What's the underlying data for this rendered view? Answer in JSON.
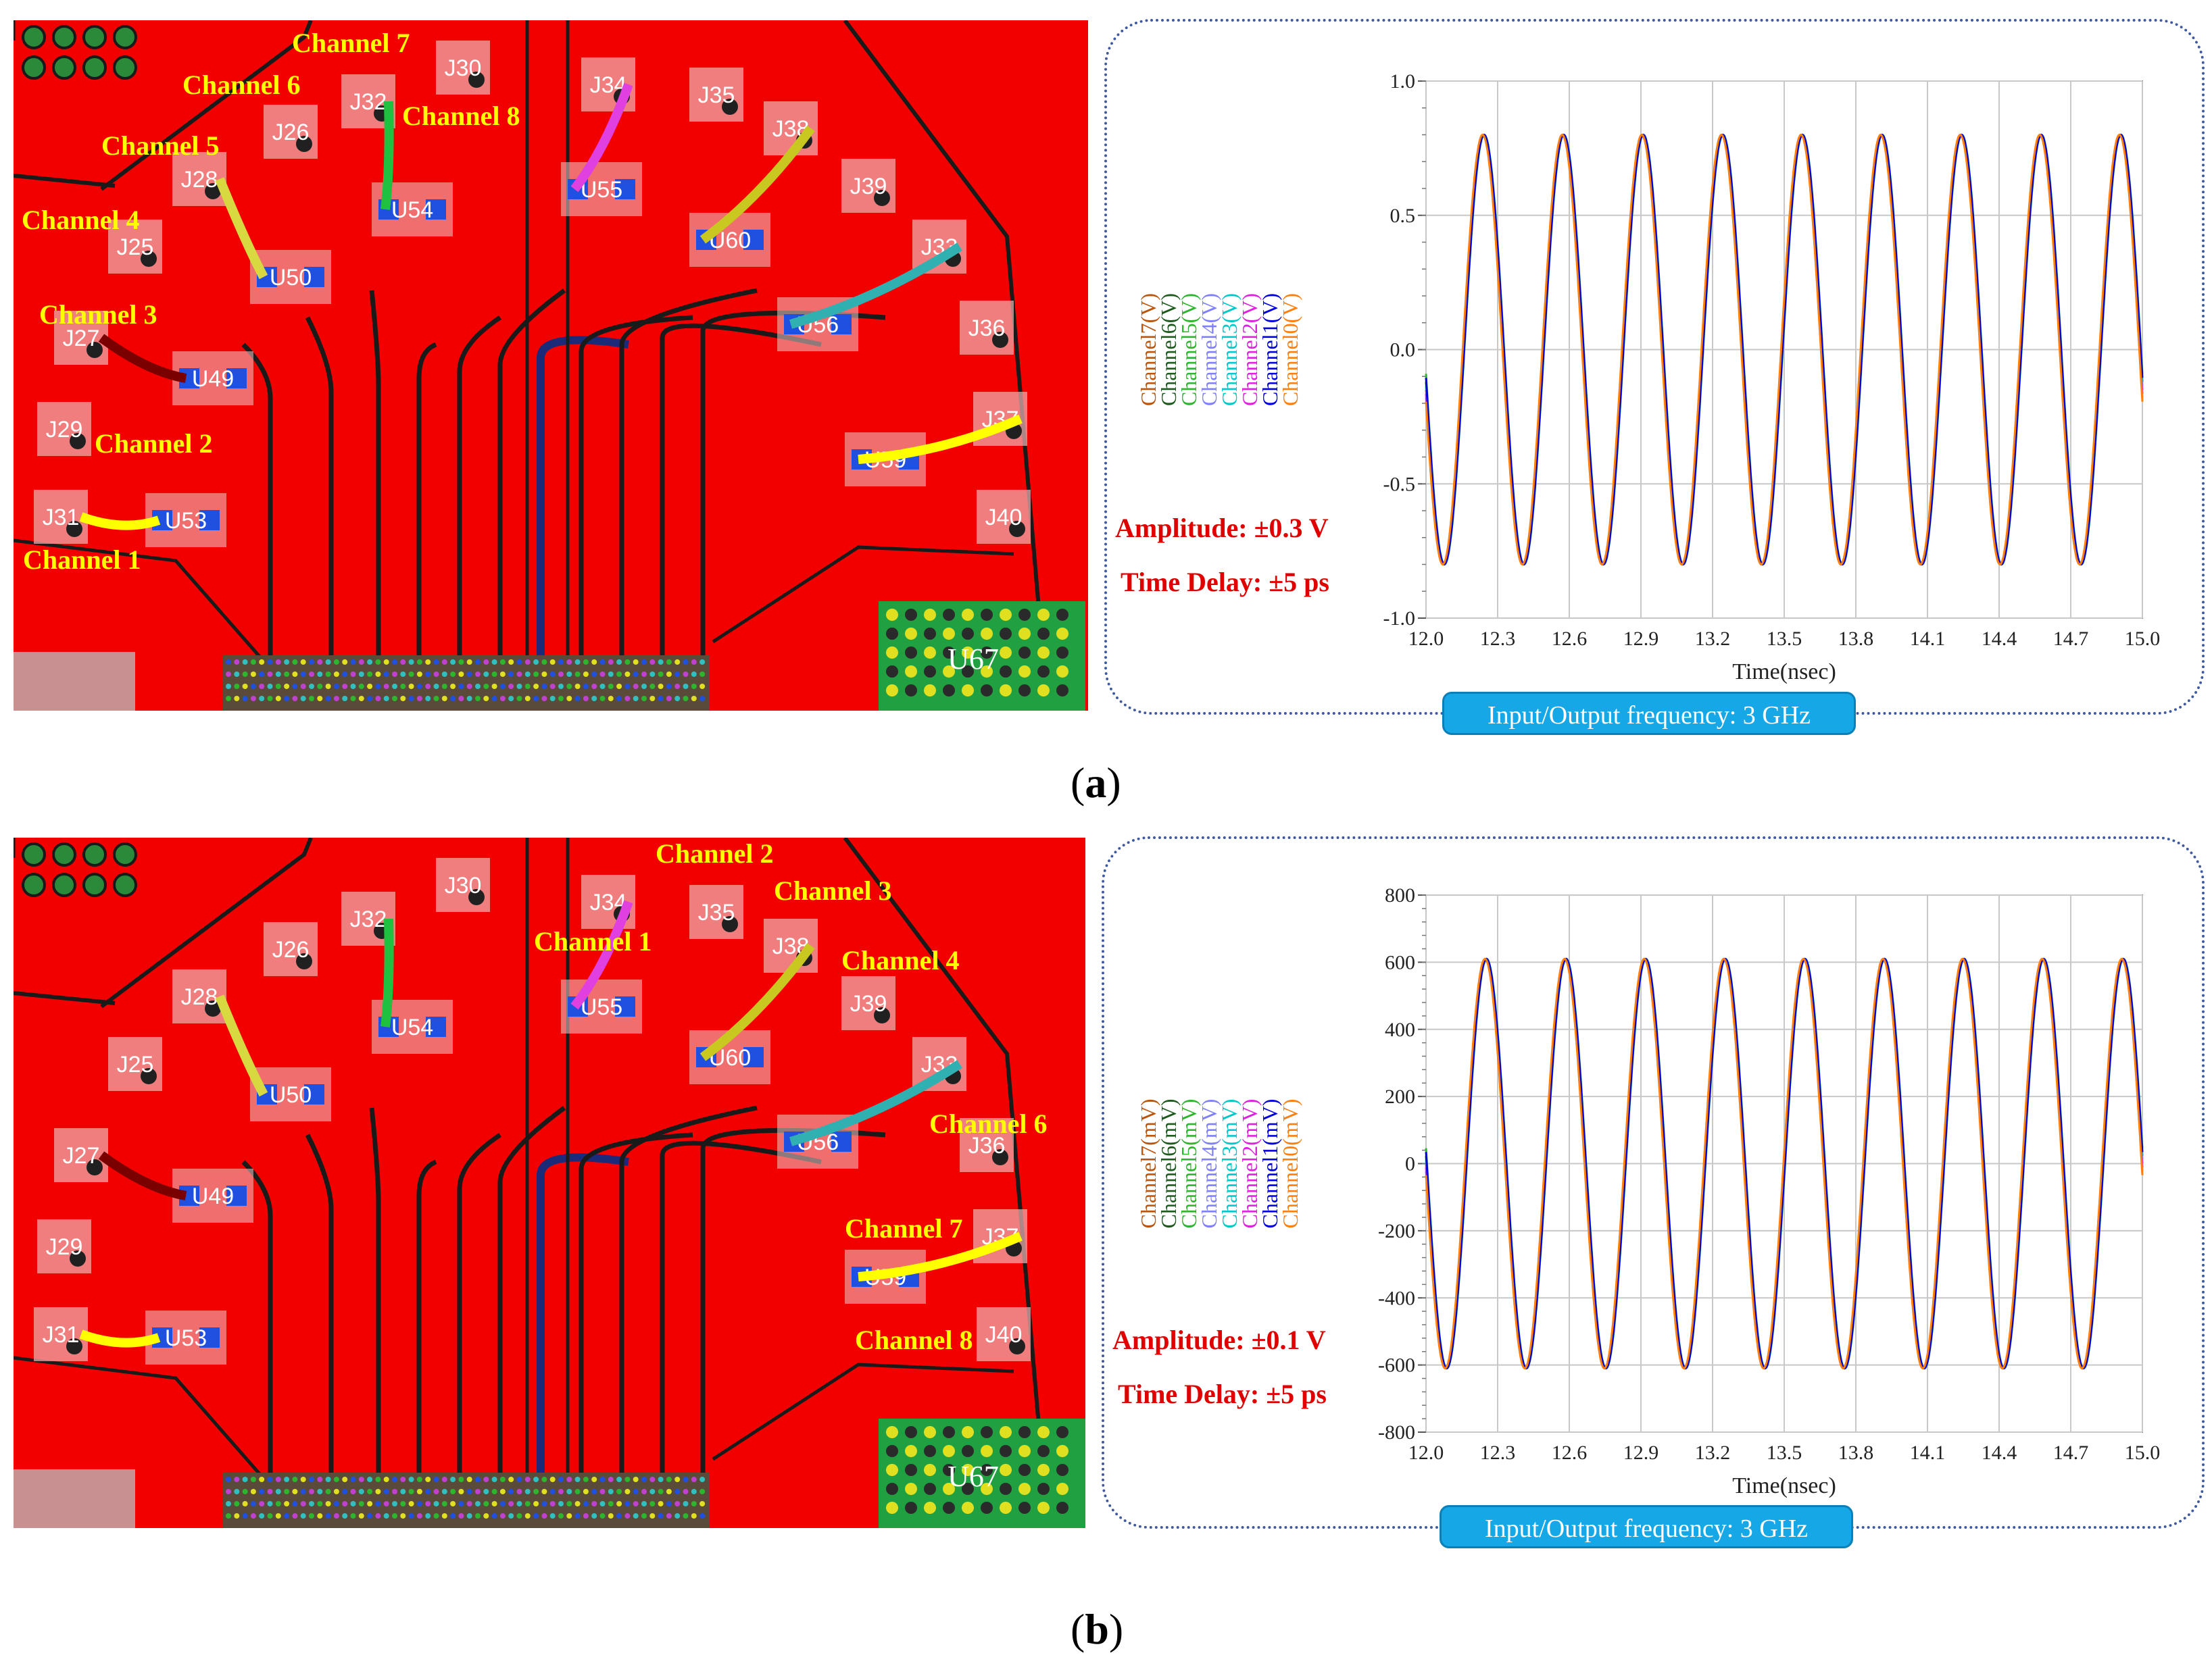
{
  "panels": [
    {
      "caption_letter": "a",
      "channel_labels": [
        "Channel 1",
        "Channel 2",
        "Channel 3",
        "Channel 4",
        "Channel 5",
        "Channel 6",
        "Channel 7",
        "Channel 8"
      ],
      "components": [
        "J31",
        "U53",
        "J29",
        "J27",
        "U49",
        "J25",
        "J28",
        "U50",
        "J26",
        "J32",
        "U54",
        "J30",
        "J34",
        "U55",
        "J35",
        "J38",
        "U60",
        "J39",
        "J33",
        "U56",
        "J36",
        "J37",
        "U59",
        "J40",
        "U67"
      ],
      "notes": {
        "amplitude": "Amplitude: ±0.3 V",
        "time_delay": "Time Delay: ±5 ps"
      },
      "frequency_label": "Input/Output frequency: 3 GHz",
      "colors": {
        "board": "#f20000",
        "label": "#ffff00",
        "note": "#e00000",
        "freq_box": "#16a8e6"
      }
    },
    {
      "caption_letter": "b",
      "channel_labels": [
        "Channel 1",
        "Channel 2",
        "Channel 3",
        "Channel 4",
        "Channel 6",
        "Channel 7",
        "Channel 8"
      ],
      "components": [
        "J31",
        "U53",
        "J29",
        "J27",
        "U49",
        "J25",
        "J28",
        "U50",
        "J26",
        "J32",
        "U54",
        "J30",
        "J34",
        "U55",
        "J35",
        "J38",
        "U60",
        "J39",
        "J33",
        "U56",
        "J36",
        "J37",
        "U59",
        "J40",
        "U67"
      ],
      "notes": {
        "amplitude": "Amplitude: ±0.1 V",
        "time_delay": "Time Delay: ±5 ps"
      },
      "frequency_label": "Input/Output frequency: 3 GHz"
    }
  ],
  "chart_data": [
    {
      "type": "line",
      "xlabel": "Time(nsec)",
      "ylabel": "",
      "xlim": [
        12.0,
        15.0
      ],
      "ylim": [
        -1.0,
        1.0
      ],
      "xticks": [
        "12.0",
        "12.3",
        "12.6",
        "12.9",
        "13.2",
        "13.5",
        "13.8",
        "14.1",
        "14.4",
        "14.7",
        "15.0"
      ],
      "yticks": [
        "1.0",
        "0.5",
        "0.0",
        "-0.5",
        "-1.0"
      ],
      "grid": true,
      "signal": {
        "frequency_ghz": 3,
        "amplitude": 0.8,
        "first_peak_ns": 12.24
      },
      "series": [
        {
          "name": "Channel7(V)",
          "color": "#b8560f",
          "offset_ps": 0
        },
        {
          "name": "Channel6(V)",
          "color": "#1e5a1e",
          "offset_ps": 2
        },
        {
          "name": "Channel5(V)",
          "color": "#2db52d",
          "offset_ps": 4
        },
        {
          "name": "Channel4(V)",
          "color": "#8080ff",
          "offset_ps": -2
        },
        {
          "name": "Channel3(V)",
          "color": "#00c8c8",
          "offset_ps": 1
        },
        {
          "name": "Channel2(V)",
          "color": "#e020e0",
          "offset_ps": -1
        },
        {
          "name": "Channel1(V)",
          "color": "#0000dd",
          "offset_ps": 3
        },
        {
          "name": "Channel0(V)",
          "color": "#ff7f0e",
          "offset_ps": -3
        }
      ]
    },
    {
      "type": "line",
      "xlabel": "Time(nsec)",
      "ylabel": "",
      "xlim": [
        12.0,
        15.0
      ],
      "ylim": [
        -800,
        800
      ],
      "xticks": [
        "12.0",
        "12.3",
        "12.6",
        "12.9",
        "13.2",
        "13.5",
        "13.8",
        "14.1",
        "14.4",
        "14.7",
        "15.0"
      ],
      "yticks": [
        "800",
        "600",
        "400",
        "200",
        "0",
        "-200",
        "-400",
        "-600",
        "-800"
      ],
      "grid": true,
      "signal": {
        "frequency_ghz": 3,
        "amplitude": 610,
        "first_peak_ns": 12.25
      },
      "series": [
        {
          "name": "Channel7(mV)",
          "color": "#b8560f",
          "offset_ps": 0
        },
        {
          "name": "Channel6(mV)",
          "color": "#1e5a1e",
          "offset_ps": 2
        },
        {
          "name": "Channel5(mV)",
          "color": "#2db52d",
          "offset_ps": 4
        },
        {
          "name": "Channel4(mV)",
          "color": "#8080ff",
          "offset_ps": -2
        },
        {
          "name": "Channel3(mV)",
          "color": "#00c8c8",
          "offset_ps": 1
        },
        {
          "name": "Channel2(mV)",
          "color": "#e020e0",
          "offset_ps": -1
        },
        {
          "name": "Channel1(mV)",
          "color": "#0000dd",
          "offset_ps": 3
        },
        {
          "name": "Channel0(mV)",
          "color": "#ff7f0e",
          "offset_ps": -3
        }
      ]
    }
  ]
}
